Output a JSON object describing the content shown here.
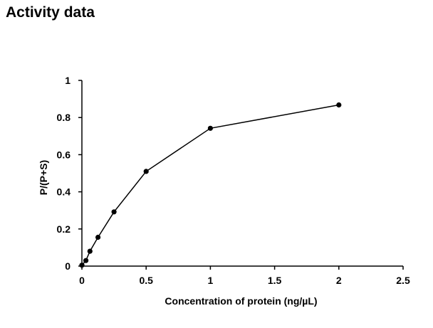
{
  "page": {
    "title": "Activity data"
  },
  "chart_data": {
    "type": "line",
    "title": "",
    "xlabel": "Concentration of protein (ng/µL)",
    "ylabel": "P/(P+S)",
    "xlim": [
      0,
      2.5
    ],
    "ylim": [
      0,
      1
    ],
    "xticks": [
      "0",
      "0.5",
      "1",
      "1.5",
      "2",
      "2.5"
    ],
    "yticks": [
      "0",
      "0.2",
      "0.4",
      "0.6",
      "0.8",
      "1"
    ],
    "grid": false,
    "legend": "none",
    "series": [
      {
        "color": "#000000",
        "marker": "circle",
        "x": [
          0,
          0.031,
          0.0625,
          0.125,
          0.25,
          0.5,
          1,
          2
        ],
        "y": [
          0.005,
          0.03,
          0.08,
          0.155,
          0.292,
          0.51,
          0.742,
          0.868
        ]
      }
    ]
  }
}
